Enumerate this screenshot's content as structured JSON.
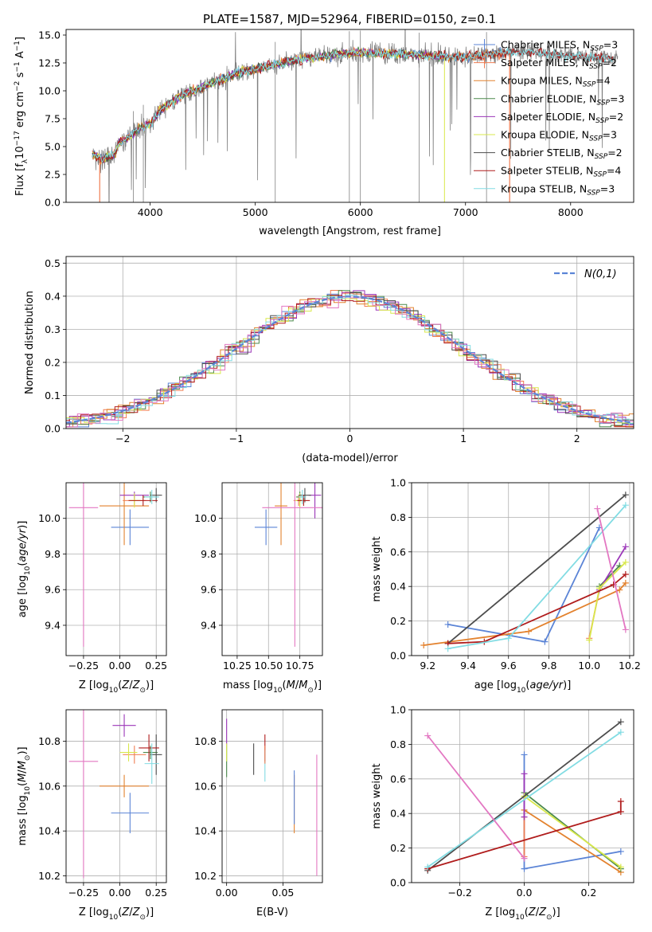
{
  "figure": {
    "title": "PLATE=1587, MJD=52964, FIBERID=0150, z=0.1"
  },
  "colors": {
    "Chabrier MILES": "#5b84d6",
    "Salpeter MILES": "#f07d52",
    "Kroupa MILES": "#e3822e",
    "Chabrier ELODIE": "#4c8a4c",
    "Salpeter ELODIE": "#9b36b8",
    "Kroupa ELODIE": "#d9e84c",
    "Chabrier STELIB": "#4d4d4d",
    "Salpeter STELIB": "#b01c1c",
    "Kroupa STELIB": "#82dce3",
    "extra_pink": "#e377c2",
    "normal_curve": "#5b84d6",
    "data_spectrum": "#808080"
  },
  "chart_data": [
    {
      "id": "spectrum",
      "type": "line",
      "title": "PLATE=1587, MJD=52964, FIBERID=0150, z=0.1",
      "xlabel": "wavelength [Angstrom, rest frame]",
      "ylabel": "Flux [f_λ 10^-17 erg cm^-2 s^-1 A^-1]",
      "xlim": [
        3200,
        8600
      ],
      "ylim": [
        0,
        15.5
      ],
      "xticks": [
        4000,
        5000,
        6000,
        7000,
        8000
      ],
      "yticks": [
        0.0,
        2.5,
        5.0,
        7.5,
        10.0,
        12.5,
        15.0
      ],
      "legend_loc": "upper right",
      "legend": [
        {
          "name": "Chabrier MILES",
          "n": "3"
        },
        {
          "name": "Salpeter MILES",
          "n": "2"
        },
        {
          "name": "Kroupa MILES",
          "n": "4"
        },
        {
          "name": "Chabrier ELODIE",
          "n": "3"
        },
        {
          "name": "Salpeter ELODIE",
          "n": "2"
        },
        {
          "name": "Kroupa ELODIE",
          "n": "3"
        },
        {
          "name": "Chabrier STELIB",
          "n": "2"
        },
        {
          "name": "Salpeter STELIB",
          "n": "4"
        },
        {
          "name": "Kroupa STELIB",
          "n": "3"
        }
      ],
      "continuum": {
        "x": [
          3450,
          3550,
          3650,
          3700,
          3800,
          3900,
          4000,
          4100,
          4300,
          4500,
          4800,
          5000,
          5200,
          5500,
          5800,
          6000,
          6300,
          6600,
          7000,
          7300,
          7500,
          7800,
          8200,
          8400
        ],
        "y": [
          4.3,
          3.9,
          4.2,
          5.2,
          5.9,
          6.6,
          7.0,
          8.3,
          9.6,
          10.3,
          11.5,
          12.0,
          12.4,
          12.9,
          13.3,
          13.4,
          13.3,
          13.2,
          13.0,
          13.4,
          13.5,
          13.3,
          13.0,
          12.9
        ]
      }
    },
    {
      "id": "residuals",
      "type": "histogram",
      "xlabel": "(data-model)/error",
      "ylabel": "Normed distribution",
      "xlim": [
        -2.5,
        2.5
      ],
      "ylim": [
        0,
        0.52
      ],
      "xticks": [
        -2,
        -1,
        0,
        1,
        2
      ],
      "yticks": [
        0.0,
        0.1,
        0.2,
        0.3,
        0.4,
        0.5
      ],
      "legend_loc": "upper right",
      "normal_label": "N(0,1)",
      "grid": true
    },
    {
      "id": "age_vs_z",
      "type": "errorbar",
      "xlabel": "Z [log10(Z/Z_sun)]",
      "ylabel": "age  [log10(age/yr)]",
      "xlim": [
        -0.37,
        0.32
      ],
      "ylim": [
        9.23,
        10.2
      ],
      "xticks": [
        -0.25,
        0.0,
        0.25
      ],
      "yticks": [
        9.4,
        9.6,
        9.8,
        10.0
      ],
      "points": [
        {
          "c": "Chabrier MILES",
          "x": 0.07,
          "y": 9.95,
          "xerr": 0.13,
          "yerr": 0.1
        },
        {
          "c": "Kroupa MILES",
          "x": 0.03,
          "y": 10.07,
          "xerr": 0.17,
          "yerr": 0.22
        },
        {
          "c": "Salpeter MILES",
          "x": 0.1,
          "y": 10.1,
          "xerr": 0.08,
          "yerr": 0.03
        },
        {
          "c": "Chabrier ELODIE",
          "x": 0.21,
          "y": 10.12,
          "xerr": 0.05,
          "yerr": 0.03
        },
        {
          "c": "Salpeter ELODIE",
          "x": 0.1,
          "y": 10.13,
          "xerr": 0.1,
          "yerr": 0.02
        },
        {
          "c": "Kroupa ELODIE",
          "x": 0.1,
          "y": 10.1,
          "xerr": 0.04,
          "yerr": 0.04
        },
        {
          "c": "Chabrier STELIB",
          "x": 0.25,
          "y": 10.13,
          "xerr": 0.04,
          "yerr": 0.04
        },
        {
          "c": "Salpeter STELIB",
          "x": 0.16,
          "y": 10.1,
          "xerr": 0.1,
          "yerr": 0.03
        },
        {
          "c": "Kroupa STELIB",
          "x": 0.22,
          "y": 10.12,
          "xerr": 0.05,
          "yerr": 0.04
        },
        {
          "c": "extra_pink",
          "x": -0.25,
          "y": 10.06,
          "xerr": 0.1,
          "yerr": 0.78
        }
      ]
    },
    {
      "id": "age_vs_mass",
      "type": "errorbar",
      "xlabel": "mass [log10(M/M_sun)]",
      "ylabel": "",
      "xlim": [
        10.13,
        10.93
      ],
      "ylim": [
        9.23,
        10.2
      ],
      "xticks": [
        10.25,
        10.5,
        10.75
      ],
      "yticks": [
        9.4,
        9.6,
        9.8,
        10.0
      ],
      "points": [
        {
          "c": "Chabrier MILES",
          "x": 10.48,
          "y": 9.95,
          "xerr": 0.09,
          "yerr": 0.1
        },
        {
          "c": "Kroupa MILES",
          "x": 10.6,
          "y": 10.07,
          "xerr": 0.05,
          "yerr": 0.22
        },
        {
          "c": "Salpeter MILES",
          "x": 10.74,
          "y": 10.1,
          "xerr": 0.04,
          "yerr": 0.03
        },
        {
          "c": "Chabrier ELODIE",
          "x": 10.75,
          "y": 10.12,
          "xerr": 0.03,
          "yerr": 0.03
        },
        {
          "c": "Salpeter ELODIE",
          "x": 10.87,
          "y": 10.13,
          "xerr": 0.05,
          "yerr": 0.13
        },
        {
          "c": "Kroupa ELODIE",
          "x": 10.75,
          "y": 10.1,
          "xerr": 0.04,
          "yerr": 0.04
        },
        {
          "c": "Chabrier STELIB",
          "x": 10.79,
          "y": 10.13,
          "xerr": 0.05,
          "yerr": 0.04
        },
        {
          "c": "Salpeter STELIB",
          "x": 10.78,
          "y": 10.1,
          "xerr": 0.05,
          "yerr": 0.03
        },
        {
          "c": "Kroupa STELIB",
          "x": 10.77,
          "y": 10.12,
          "xerr": 0.03,
          "yerr": 0.04
        },
        {
          "c": "extra_pink",
          "x": 10.71,
          "y": 10.06,
          "xerr": 0.26,
          "yerr": 0.78
        }
      ]
    },
    {
      "id": "massweight_vs_age",
      "type": "line",
      "xlabel": "age  [log10(age/yr)]",
      "ylabel": "mass weight",
      "xlim": [
        9.12,
        10.22
      ],
      "ylim": [
        0,
        1
      ],
      "xticks": [
        9.2,
        9.4,
        9.6,
        9.8,
        10.0,
        10.2
      ],
      "yticks": [
        0.0,
        0.2,
        0.4,
        0.6,
        0.8,
        1.0
      ],
      "series": [
        {
          "c": "Chabrier MILES",
          "x": [
            9.3,
            9.78,
            10.05
          ],
          "y": [
            0.18,
            0.08,
            0.74
          ]
        },
        {
          "c": "Kroupa MILES",
          "x": [
            9.18,
            9.7,
            10.15,
            10.18
          ],
          "y": [
            0.06,
            0.14,
            0.38,
            0.42
          ]
        },
        {
          "c": "Salpeter MILES",
          "x": [
            10.0,
            10.05
          ],
          "y": [
            0.1,
            0.38
          ]
        },
        {
          "c": "Chabrier ELODIE",
          "x": [
            10.05,
            10.15
          ],
          "y": [
            0.4,
            0.52
          ]
        },
        {
          "c": "Salpeter ELODIE",
          "x": [
            10.05,
            10.18
          ],
          "y": [
            0.38,
            0.63
          ]
        },
        {
          "c": "Kroupa ELODIE",
          "x": [
            10.0,
            10.05,
            10.18
          ],
          "y": [
            0.09,
            0.39,
            0.54
          ]
        },
        {
          "c": "Chabrier STELIB",
          "x": [
            9.3,
            10.18
          ],
          "y": [
            0.07,
            0.93
          ]
        },
        {
          "c": "Salpeter STELIB",
          "x": [
            9.3,
            9.48,
            10.12,
            10.18
          ],
          "y": [
            0.07,
            0.08,
            0.41,
            0.47
          ]
        },
        {
          "c": "Kroupa STELIB",
          "x": [
            9.3,
            9.6,
            10.18
          ],
          "y": [
            0.04,
            0.1,
            0.87
          ]
        },
        {
          "c": "extra_pink",
          "x": [
            10.04,
            10.18
          ],
          "y": [
            0.85,
            0.15
          ]
        }
      ]
    },
    {
      "id": "mass_vs_z",
      "type": "errorbar",
      "xlabel": "Z [log10(Z/Z_sun)]",
      "ylabel": "mass [log10(M/M_sun)]",
      "xlim": [
        -0.37,
        0.32
      ],
      "ylim": [
        10.17,
        10.94
      ],
      "xticks": [
        -0.25,
        0.0,
        0.25
      ],
      "yticks": [
        10.2,
        10.4,
        10.6,
        10.8
      ],
      "points": [
        {
          "c": "Chabrier MILES",
          "x": 0.07,
          "y": 10.48,
          "xerr": 0.13,
          "yerr": 0.09
        },
        {
          "c": "Kroupa MILES",
          "x": 0.03,
          "y": 10.6,
          "xerr": 0.17,
          "yerr": 0.05
        },
        {
          "c": "Salpeter MILES",
          "x": 0.1,
          "y": 10.74,
          "xerr": 0.08,
          "yerr": 0.04
        },
        {
          "c": "Chabrier ELODIE",
          "x": 0.21,
          "y": 10.75,
          "xerr": 0.05,
          "yerr": 0.03
        },
        {
          "c": "Salpeter ELODIE",
          "x": 0.03,
          "y": 10.87,
          "xerr": 0.08,
          "yerr": 0.05
        },
        {
          "c": "Kroupa ELODIE",
          "x": 0.06,
          "y": 10.75,
          "xerr": 0.06,
          "yerr": 0.04
        },
        {
          "c": "Chabrier STELIB",
          "x": 0.25,
          "y": 10.74,
          "xerr": 0.04,
          "yerr": 0.09
        },
        {
          "c": "Salpeter STELIB",
          "x": 0.2,
          "y": 10.77,
          "xerr": 0.07,
          "yerr": 0.06
        },
        {
          "c": "Kroupa STELIB",
          "x": 0.22,
          "y": 10.7,
          "xerr": 0.05,
          "yerr": 0.09
        },
        {
          "c": "extra_pink",
          "x": -0.25,
          "y": 10.71,
          "xerr": 0.1,
          "yerr": 0.52
        }
      ]
    },
    {
      "id": "mass_vs_ebv",
      "type": "errorbar",
      "xlabel": "E(B-V)",
      "ylabel": "",
      "xlim": [
        -0.004,
        0.085
      ],
      "ylim": [
        10.17,
        10.94
      ],
      "xticks": [
        0.0,
        0.05
      ],
      "yticks": [
        10.2,
        10.4,
        10.6,
        10.8
      ],
      "points": [
        {
          "c": "Salpeter ELODIE",
          "x": 0.0,
          "y": 10.84,
          "xerr": 0,
          "yerr": 0.06
        },
        {
          "c": "Chabrier ELODIE",
          "x": 0.0,
          "y": 10.71,
          "xerr": 0,
          "yerr": 0.07
        },
        {
          "c": "Kroupa ELODIE",
          "x": 0.0,
          "y": 10.75,
          "xerr": 0,
          "yerr": 0.04
        },
        {
          "c": "Chabrier STELIB",
          "x": 0.024,
          "y": 10.72,
          "xerr": 0,
          "yerr": 0.07
        },
        {
          "c": "Salpeter STELIB",
          "x": 0.034,
          "y": 10.77,
          "xerr": 0,
          "yerr": 0.06
        },
        {
          "c": "Kroupa STELIB",
          "x": 0.034,
          "y": 10.69,
          "xerr": 0,
          "yerr": 0.07
        },
        {
          "c": "Salpeter MILES",
          "x": 0.034,
          "y": 10.74,
          "xerr": 0,
          "yerr": 0.04
        },
        {
          "c": "Kroupa MILES",
          "x": 0.06,
          "y": 10.52,
          "xerr": 0,
          "yerr": 0.13
        },
        {
          "c": "Chabrier MILES",
          "x": 0.06,
          "y": 10.55,
          "xerr": 0,
          "yerr": 0.12
        },
        {
          "c": "extra_pink",
          "x": 0.08,
          "y": 10.47,
          "xerr": 0,
          "yerr": 0.27
        }
      ]
    },
    {
      "id": "massweight_vs_z",
      "type": "line",
      "xlabel": "Z [log10(Z/Z_sun)]",
      "ylabel": "mass weight",
      "xlim": [
        -0.35,
        0.34
      ],
      "ylim": [
        0,
        1
      ],
      "xticks": [
        -0.2,
        0.0,
        0.2
      ],
      "yticks": [
        0.0,
        0.2,
        0.4,
        0.6,
        0.8,
        1.0
      ],
      "series": [
        {
          "c": "Chabrier MILES",
          "x": [
            0.0,
            0.0,
            0.3
          ],
          "y": [
            0.74,
            0.08,
            0.18
          ]
        },
        {
          "c": "Kroupa MILES",
          "x": [
            0.0,
            0.0,
            0.3
          ],
          "y": [
            0.38,
            0.42,
            0.06
          ]
        },
        {
          "c": "Salpeter MILES",
          "x": [
            0.0,
            0.0
          ],
          "y": [
            0.38,
            0.15
          ]
        },
        {
          "c": "Chabrier ELODIE",
          "x": [
            0.0,
            0.3
          ],
          "y": [
            0.52,
            0.08
          ]
        },
        {
          "c": "Salpeter ELODIE",
          "x": [
            0.0,
            0.0
          ],
          "y": [
            0.63,
            0.38
          ]
        },
        {
          "c": "Kroupa ELODIE",
          "x": [
            0.0,
            0.3
          ],
          "y": [
            0.5,
            0.09
          ]
        },
        {
          "c": "Chabrier STELIB",
          "x": [
            -0.3,
            0.3
          ],
          "y": [
            0.07,
            0.93
          ]
        },
        {
          "c": "Salpeter STELIB",
          "x": [
            -0.3,
            0.3,
            0.3
          ],
          "y": [
            0.08,
            0.41,
            0.47
          ]
        },
        {
          "c": "Kroupa STELIB",
          "x": [
            -0.3,
            0.3
          ],
          "y": [
            0.09,
            0.87
          ]
        },
        {
          "c": "extra_pink",
          "x": [
            -0.3,
            0.0
          ],
          "y": [
            0.85,
            0.14
          ]
        }
      ]
    }
  ]
}
